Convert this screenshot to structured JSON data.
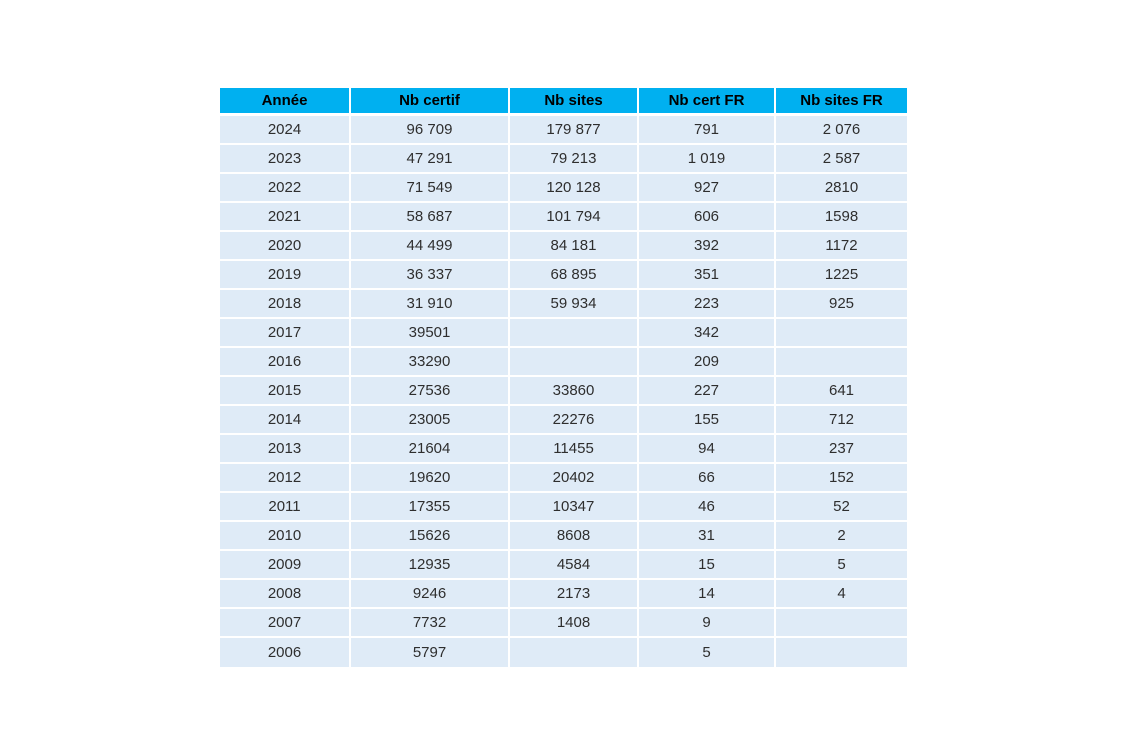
{
  "colors": {
    "header_bg": "#00B0F0",
    "header_text": "#000000",
    "row_bg": "#DFEBF7",
    "body_text": "#2e2e2e",
    "divider": "#FFFFFF",
    "page_bg": "#FFFFFF"
  },
  "chart_data": {
    "type": "table",
    "columns": [
      "Année",
      "Nb certif",
      "Nb sites",
      "Nb cert FR",
      "Nb sites FR"
    ],
    "rows": [
      [
        "2024",
        "96 709",
        "179 877",
        "791",
        "2 076"
      ],
      [
        "2023",
        "47 291",
        "79 213",
        "1 019",
        "2 587"
      ],
      [
        "2022",
        "71 549",
        "120 128",
        "927",
        "2810"
      ],
      [
        "2021",
        "58 687",
        "101 794",
        "606",
        "1598"
      ],
      [
        "2020",
        "44 499",
        "84 181",
        "392",
        "1172"
      ],
      [
        "2019",
        "36 337",
        "68 895",
        "351",
        "1225"
      ],
      [
        "2018",
        "31 910",
        "59 934",
        "223",
        "925"
      ],
      [
        "2017",
        "39501",
        "",
        "342",
        ""
      ],
      [
        "2016",
        "33290",
        "",
        "209",
        ""
      ],
      [
        "2015",
        "27536",
        "33860",
        "227",
        "641"
      ],
      [
        "2014",
        "23005",
        "22276",
        "155",
        "712"
      ],
      [
        "2013",
        "21604",
        "11455",
        "94",
        "237"
      ],
      [
        "2012",
        "19620",
        "20402",
        "66",
        "152"
      ],
      [
        "2011",
        "17355",
        "10347",
        "46",
        "52"
      ],
      [
        "2010",
        "15626",
        "8608",
        "31",
        "2"
      ],
      [
        "2009",
        "12935",
        "4584",
        "15",
        "5"
      ],
      [
        "2008",
        "9246",
        "2173",
        "14",
        "4"
      ],
      [
        "2007",
        "7732",
        "1408",
        "9",
        ""
      ],
      [
        "2006",
        "5797",
        "",
        "5",
        ""
      ]
    ]
  }
}
